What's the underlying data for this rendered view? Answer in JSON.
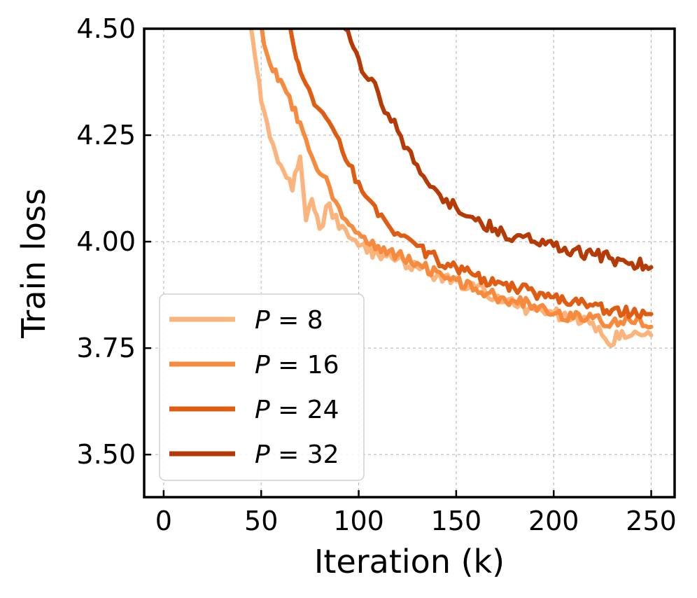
{
  "chart_data": {
    "type": "line",
    "title": "",
    "xlabel": "Iteration (k)",
    "ylabel": "Train loss",
    "xlim": [
      -10,
      262
    ],
    "ylim": [
      3.4,
      4.5
    ],
    "xticks": [
      0,
      50,
      100,
      150,
      200,
      250
    ],
    "yticks": [
      3.5,
      3.75,
      4.0,
      4.25,
      4.5
    ],
    "xtick_labels": [
      "0",
      "50",
      "100",
      "150",
      "200",
      "250"
    ],
    "ytick_labels": [
      "3.50",
      "3.75",
      "4.00",
      "4.25",
      "4.50"
    ],
    "grid": true,
    "legend_position": "lower-left",
    "series": [
      {
        "name": "P = 8",
        "label_var": "P",
        "label_eq": " = ",
        "label_val": "8",
        "color": "#fdb47c",
        "x": [
          44,
          48,
          50,
          53,
          56,
          60,
          63,
          66,
          70,
          73,
          76,
          80,
          85,
          90,
          95,
          100,
          110,
          120,
          130,
          140,
          150,
          160,
          170,
          180,
          190,
          200,
          210,
          220,
          228,
          235,
          240,
          245,
          250
        ],
        "y": [
          4.52,
          4.4,
          4.33,
          4.28,
          4.23,
          4.18,
          4.15,
          4.12,
          4.2,
          4.05,
          4.1,
          4.03,
          4.09,
          4.03,
          4.01,
          3.99,
          3.97,
          3.96,
          3.94,
          3.92,
          3.91,
          3.89,
          3.87,
          3.85,
          3.84,
          3.83,
          3.82,
          3.81,
          3.76,
          3.79,
          3.78,
          3.78,
          3.78
        ]
      },
      {
        "name": "P = 16",
        "label_var": "P",
        "label_eq": " = ",
        "label_val": "16",
        "color": "#f78a3c",
        "x": [
          50,
          53,
          56,
          60,
          63,
          66,
          70,
          73,
          76,
          80,
          85,
          90,
          95,
          100,
          110,
          120,
          130,
          140,
          150,
          160,
          170,
          180,
          190,
          200,
          210,
          220,
          230,
          240,
          250
        ],
        "y": [
          4.51,
          4.44,
          4.4,
          4.38,
          4.35,
          4.31,
          4.28,
          4.24,
          4.2,
          4.16,
          4.13,
          4.08,
          4.04,
          4.02,
          3.99,
          3.97,
          3.95,
          3.93,
          3.91,
          3.89,
          3.87,
          3.86,
          3.85,
          3.83,
          3.82,
          3.82,
          3.81,
          3.81,
          3.8
        ]
      },
      {
        "name": "P = 24",
        "label_var": "P",
        "label_eq": " = ",
        "label_val": "24",
        "color": "#e05c12",
        "x": [
          65,
          68,
          70,
          73,
          76,
          80,
          85,
          90,
          95,
          100,
          105,
          110,
          115,
          120,
          125,
          130,
          140,
          150,
          160,
          170,
          180,
          190,
          200,
          210,
          220,
          230,
          240,
          250
        ],
        "y": [
          4.5,
          4.43,
          4.4,
          4.37,
          4.34,
          4.31,
          4.28,
          4.24,
          4.18,
          4.14,
          4.1,
          4.06,
          4.04,
          4.02,
          4.01,
          3.99,
          3.96,
          3.94,
          3.92,
          3.9,
          3.89,
          3.88,
          3.87,
          3.86,
          3.85,
          3.84,
          3.83,
          3.83
        ]
      },
      {
        "name": "P = 32",
        "label_var": "P",
        "label_eq": " = ",
        "label_val": "32",
        "color": "#b53a06",
        "x": [
          93,
          96,
          100,
          105,
          110,
          115,
          120,
          125,
          130,
          135,
          140,
          145,
          150,
          155,
          160,
          170,
          180,
          190,
          200,
          210,
          220,
          230,
          240,
          250
        ],
        "y": [
          4.5,
          4.47,
          4.43,
          4.38,
          4.35,
          4.3,
          4.26,
          4.22,
          4.18,
          4.14,
          4.12,
          4.1,
          4.08,
          4.06,
          4.05,
          4.03,
          4.01,
          4.0,
          3.99,
          3.98,
          3.97,
          3.96,
          3.95,
          3.94
        ]
      }
    ]
  }
}
